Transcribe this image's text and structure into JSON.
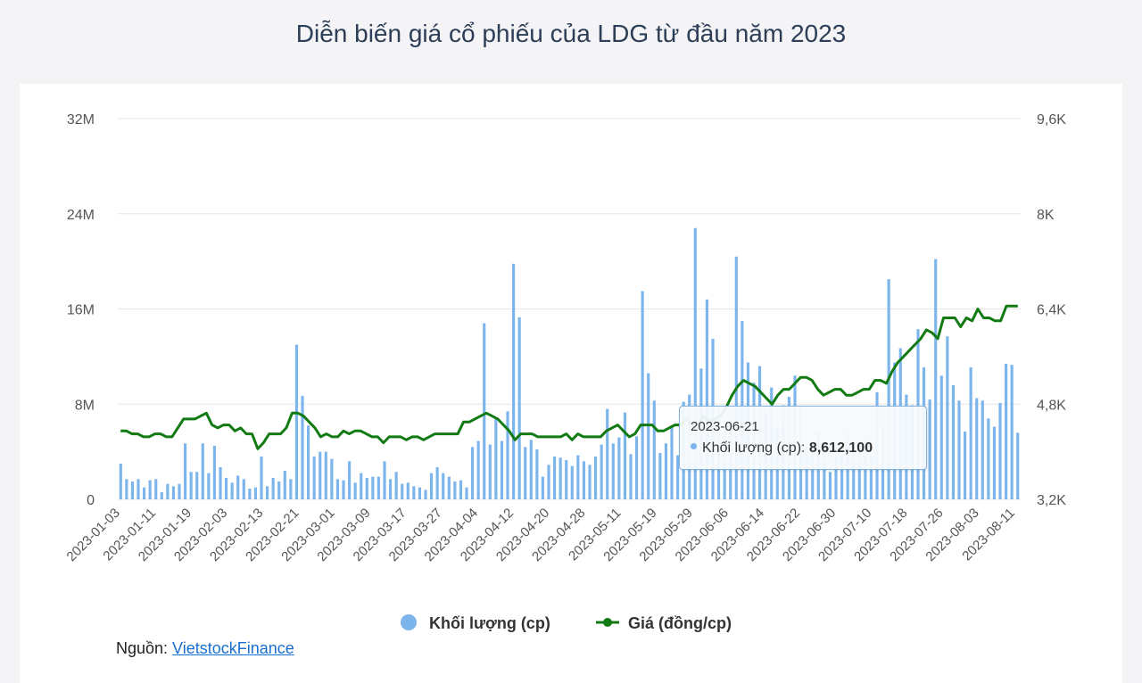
{
  "chart_data": {
    "type": "bar+line",
    "title": "Diễn biến giá cổ phiếu của LDG từ đầu năm 2023",
    "left_axis": {
      "min": 0,
      "max": 32000000,
      "ticks": [
        "0",
        "8M",
        "16M",
        "24M",
        "32M"
      ]
    },
    "right_axis": {
      "min": 3200,
      "max": 9600,
      "ticks": [
        "3,2K",
        "4,8K",
        "6,4K",
        "8K",
        "9,6K"
      ]
    },
    "x_labels": [
      "2023-01-03",
      "2023-01-11",
      "2023-01-19",
      "2023-02-03",
      "2023-02-13",
      "2023-02-21",
      "2023-03-01",
      "2023-03-09",
      "2023-03-17",
      "2023-03-27",
      "2023-04-04",
      "2023-04-12",
      "2023-04-20",
      "2023-04-28",
      "2023-05-11",
      "2023-05-19",
      "2023-05-29",
      "2023-06-06",
      "2023-06-14",
      "2023-06-22",
      "2023-06-30",
      "2023-07-10",
      "2023-07-18",
      "2023-07-26",
      "2023-08-03",
      "2023-08-11"
    ],
    "series": [
      {
        "name": "Khối lượng (cp)",
        "type": "column",
        "color": "#7cb5ec",
        "values": [
          3000000,
          1700000,
          1500000,
          1700000,
          1000000,
          1600000,
          1700000,
          600000,
          1300000,
          1100000,
          1300000,
          4700000,
          2300000,
          2300000,
          4700000,
          2200000,
          4500000,
          2700000,
          1800000,
          1400000,
          2000000,
          1700000,
          900000,
          1000000,
          3600000,
          1100000,
          1800000,
          1500000,
          2400000,
          1700000,
          13000000,
          8700000,
          6200000,
          3600000,
          4000000,
          4000000,
          3400000,
          1700000,
          1600000,
          3200000,
          1400000,
          2200000,
          1800000,
          1900000,
          1900000,
          3200000,
          1700000,
          2300000,
          1300000,
          1400000,
          1100000,
          1000000,
          800000,
          2200000,
          2700000,
          2200000,
          1900000,
          1500000,
          1600000,
          1000000,
          4400000,
          4900000,
          14800000,
          4600000,
          6800000,
          4900000,
          7400000,
          19800000,
          15300000,
          4400000,
          5000000,
          4200000,
          1900000,
          2900000,
          3600000,
          3500000,
          3300000,
          2800000,
          3700000,
          3200000,
          2900000,
          3600000,
          4600000,
          7600000,
          4700000,
          5200000,
          7300000,
          3800000,
          5300000,
          17500000,
          10600000,
          8300000,
          3900000,
          4700000,
          6200000,
          3700000,
          8200000,
          8800000,
          22800000,
          11000000,
          16800000,
          13500000,
          7600000,
          6100000,
          6800000,
          20400000,
          15000000,
          11500000,
          9800000,
          11200000,
          7400000,
          9400000,
          6300000,
          7900000,
          8612100,
          10400000,
          7800000,
          4500000,
          4800000,
          5700000,
          4300000,
          2300000,
          3600000,
          3700000,
          5500000,
          4100000,
          4000000,
          5000000,
          3500000,
          9000000,
          6000000,
          18500000,
          11500000,
          12700000,
          8800000,
          7900000,
          14300000,
          11100000,
          8400000,
          20200000,
          10400000,
          13700000,
          9600000,
          8300000,
          5700000,
          11100000,
          8500000,
          8300000,
          6800000,
          6100000,
          8100000,
          11400000,
          11300000,
          5600000
        ]
      },
      {
        "name": "Giá (đồng/cp)",
        "type": "line",
        "color": "#127a12",
        "values": [
          4350,
          4350,
          4300,
          4300,
          4250,
          4250,
          4300,
          4300,
          4250,
          4250,
          4400,
          4550,
          4550,
          4550,
          4600,
          4650,
          4450,
          4400,
          4450,
          4450,
          4350,
          4400,
          4300,
          4300,
          4050,
          4150,
          4300,
          4300,
          4300,
          4400,
          4650,
          4650,
          4600,
          4500,
          4400,
          4250,
          4300,
          4250,
          4250,
          4350,
          4300,
          4350,
          4350,
          4300,
          4250,
          4250,
          4150,
          4250,
          4250,
          4250,
          4200,
          4250,
          4250,
          4200,
          4250,
          4300,
          4300,
          4300,
          4300,
          4300,
          4500,
          4500,
          4550,
          4600,
          4650,
          4600,
          4550,
          4450,
          4350,
          4200,
          4300,
          4300,
          4300,
          4250,
          4250,
          4250,
          4250,
          4250,
          4300,
          4200,
          4300,
          4250,
          4250,
          4250,
          4250,
          4350,
          4400,
          4450,
          4350,
          4250,
          4300,
          4450,
          4450,
          4450,
          4350,
          4350,
          4400,
          4450,
          4450,
          4550,
          4450,
          4450,
          4600,
          4500,
          4550,
          4600,
          4750,
          4950,
          5100,
          5200,
          5150,
          5100,
          5000,
          4900,
          4800,
          4950,
          5050,
          5050,
          5150,
          5250,
          5250,
          5200,
          5050,
          4950,
          5000,
          5050,
          5050,
          4950,
          4950,
          5000,
          5050,
          5050,
          5200,
          5200,
          5150,
          5350,
          5500,
          5600,
          5700,
          5800,
          5900,
          6050,
          6000,
          5900,
          6250,
          6250,
          6250,
          6100,
          6250,
          6200,
          6400,
          6250,
          6250,
          6200,
          6200,
          6450,
          6450,
          6450
        ]
      }
    ],
    "tooltip": {
      "date": "2023-06-21",
      "series_name": "Khối lượng (cp)",
      "value": "8,612,100"
    },
    "legend": [
      "Khối lượng (cp)",
      "Giá (đồng/cp)"
    ]
  },
  "tooltip_text": {
    "date": "2023-06-21",
    "label": "Khối lượng (cp): ",
    "value": "8,612,100"
  },
  "source": {
    "prefix": "Nguồn: ",
    "link": "VietstockFinance"
  }
}
